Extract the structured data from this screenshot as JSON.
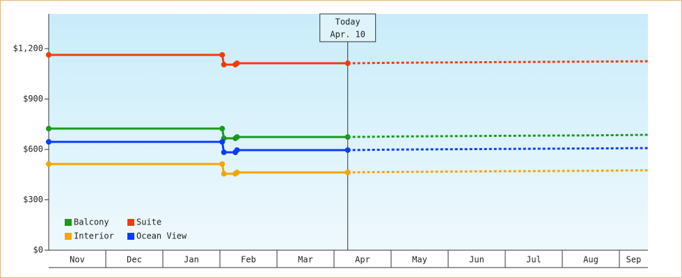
{
  "chart_data": {
    "type": "line",
    "annotation": {
      "lines": [
        "Today",
        "Apr. 10"
      ],
      "x": 5.24
    },
    "categories": [
      "Nov",
      "Dec",
      "Jan",
      "Feb",
      "Mar",
      "Apr",
      "May",
      "Jun",
      "Jul",
      "Aug",
      "Sep"
    ],
    "xlim": [
      0,
      10.5
    ],
    "x": [
      0,
      3.04,
      3.07,
      3.27,
      3.3,
      5.24
    ],
    "forecast_x": [
      5.24,
      6.04,
      7.93,
      9.63,
      10.5
    ],
    "ylim": [
      0,
      1407
    ],
    "yticks": [
      {
        "value": 0,
        "label": "$0"
      },
      {
        "value": 300,
        "label": "$300"
      },
      {
        "value": 600,
        "label": "$600"
      },
      {
        "value": 900,
        "label": "$900"
      },
      {
        "value": 1200,
        "label": "$1,200"
      }
    ],
    "legend": "lower left",
    "series": [
      {
        "name": "Balcony",
        "color": "#1a9a1a",
        "values": [
          724,
          724,
          666,
          666,
          674,
          674
        ],
        "forecast": [
          674,
          677,
          681,
          684,
          687
        ]
      },
      {
        "name": "Suite",
        "color": "#f03c0a",
        "values": [
          1163,
          1163,
          1105,
          1105,
          1113,
          1113
        ],
        "forecast": [
          1113,
          1116,
          1120,
          1123,
          1125
        ]
      },
      {
        "name": "Interior",
        "color": "#f5a500",
        "values": [
          513,
          513,
          455,
          455,
          463,
          463
        ],
        "forecast": [
          463,
          466,
          470,
          473,
          476
        ]
      },
      {
        "name": "Ocean View",
        "color": "#0a3cff",
        "values": [
          645,
          645,
          583,
          583,
          596,
          596
        ],
        "forecast": [
          596,
          599,
          603,
          606,
          608
        ]
      }
    ]
  }
}
